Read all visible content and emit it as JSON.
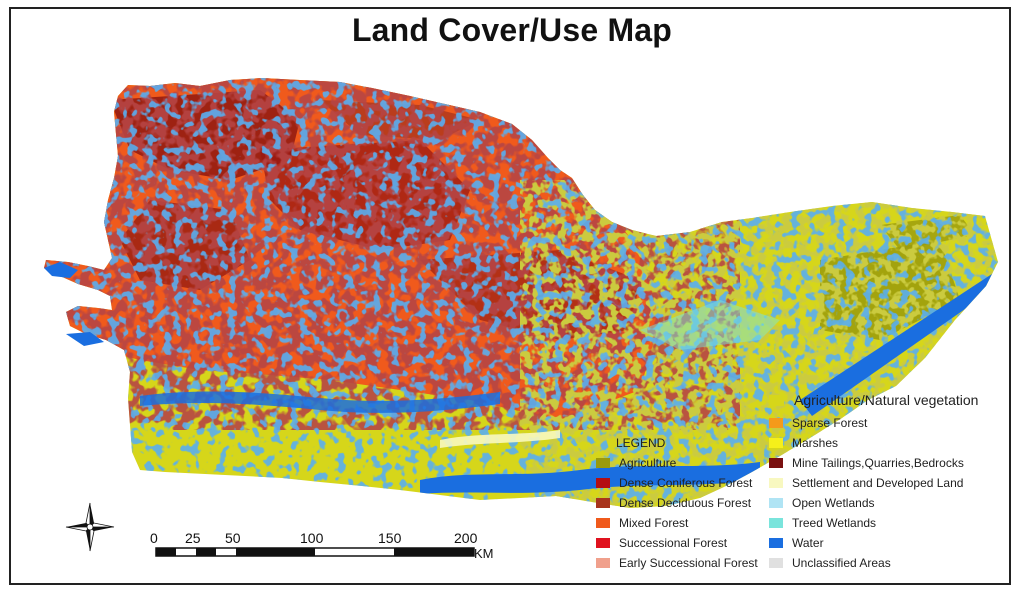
{
  "title": "Land Cover/Use Map",
  "legend": {
    "title": "LEGEND",
    "primary": {
      "label": "Agriculture/Natural vegetation",
      "color": "#d6d61a"
    },
    "left_items": [
      {
        "label": "Agriculture",
        "color": "#9a9a0c"
      },
      {
        "label": "Dense Coniferous Forest",
        "color": "#b40e12"
      },
      {
        "label": "Dense Deciduous Forest",
        "color": "#a8341c"
      },
      {
        "label": "Mixed Forest",
        "color": "#f05a1c"
      },
      {
        "label": "Successional Forest",
        "color": "#e0121e"
      },
      {
        "label": "Early Successional Forest",
        "color": "#f0a08c"
      }
    ],
    "right_items": [
      {
        "label": "Sparse Forest",
        "color": "#f59a1a"
      },
      {
        "label": "Marshes",
        "color": "#f5f01a"
      },
      {
        "label": "Mine Tailings,Quarries,Bedrocks",
        "color": "#7a1010"
      },
      {
        "label": "Settlement and Developed Land",
        "color": "#f8f8c0"
      },
      {
        "label": "Open Wetlands",
        "color": "#b0e4f4"
      },
      {
        "label": "Treed Wetlands",
        "color": "#7ae4dc"
      },
      {
        "label": "Water",
        "color": "#1a6ee0"
      },
      {
        "label": "Unclassified Areas",
        "color": "#e0e0e0"
      }
    ]
  },
  "scale_bar": {
    "labels": [
      "0",
      "25",
      "50",
      "100",
      "150",
      "200"
    ],
    "unit": "KM"
  },
  "compass": {
    "icon": "north-arrow-compass-rose-icon"
  }
}
